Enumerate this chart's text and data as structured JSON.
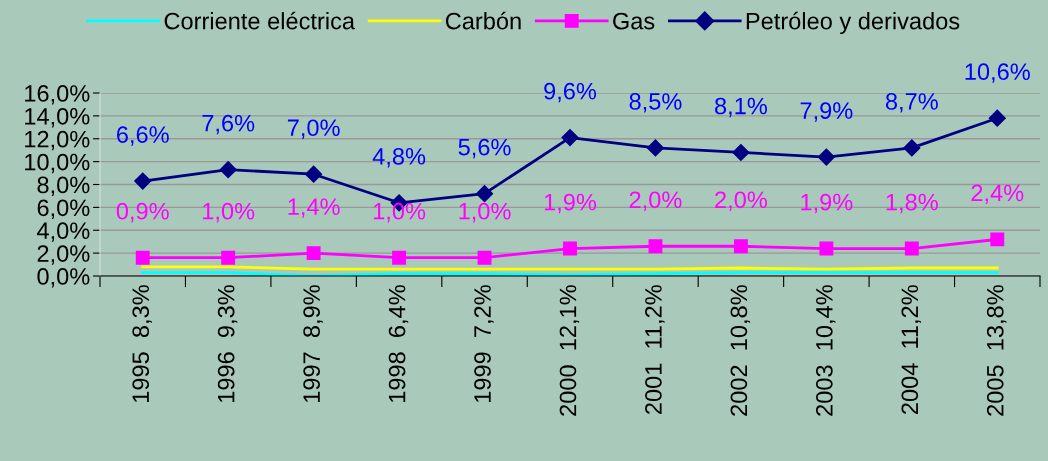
{
  "chart_data": {
    "type": "line",
    "categories": [
      "1995  8,3%",
      "1996  9,3%",
      "1997  8,9%",
      "1998  6,4%",
      "1999  7,2%",
      "2000  12,1%",
      "2001  11,2%",
      "2002  10,8%",
      "2003  10,4%",
      "2004  11,2%",
      "2005  13,8%"
    ],
    "series": [
      {
        "name": "Corriente eléctrica",
        "color": "#00ffff",
        "marker": "none",
        "values": [
          0.3,
          0.3,
          0.0,
          0.2,
          0.2,
          0.1,
          0.2,
          0.3,
          0.3,
          0.3,
          0.3
        ]
      },
      {
        "name": "Carbón",
        "color": "#ffff00",
        "marker": "none",
        "values": [
          0.8,
          0.8,
          0.6,
          0.6,
          0.6,
          0.6,
          0.6,
          0.7,
          0.6,
          0.7,
          0.7
        ]
      },
      {
        "name": "Gas",
        "color": "#ff00ff",
        "marker": "square",
        "values": [
          1.6,
          1.6,
          2.0,
          1.6,
          1.6,
          2.4,
          2.6,
          2.6,
          2.4,
          2.4,
          3.2
        ]
      },
      {
        "name": "Petróleo y derivados",
        "color": "#000080",
        "marker": "diamond",
        "values": [
          8.3,
          9.3,
          8.9,
          6.4,
          7.2,
          12.1,
          11.2,
          10.8,
          10.4,
          11.2,
          13.8
        ]
      }
    ],
    "ylim": [
      0,
      16
    ],
    "yticks": [
      {
        "value": 0,
        "label": "0,0%"
      },
      {
        "value": 2,
        "label": "2,0%"
      },
      {
        "value": 4,
        "label": "4,0%"
      },
      {
        "value": 6,
        "label": "6,0%"
      },
      {
        "value": 8,
        "label": "8,0%"
      },
      {
        "value": 10,
        "label": "10,0%"
      },
      {
        "value": 12,
        "label": "12,0%"
      },
      {
        "value": 14,
        "label": "14,0%"
      },
      {
        "value": 16,
        "label": "16,0%"
      }
    ],
    "grid": "y",
    "legend": "top",
    "annotations": [
      "6,6%",
      "7,6%",
      "7,0%",
      "4,8%",
      "5,6%",
      "9,6%",
      "8,5%",
      "8,1%",
      "7,9%",
      "8,7%",
      "10,6%",
      "0,9%",
      "1,0%",
      "1,4%",
      "1,0%",
      "1,0%",
      "1,9%",
      "2,0%",
      "2,0%",
      "1,9%",
      "1,8%",
      "2,4%"
    ]
  }
}
